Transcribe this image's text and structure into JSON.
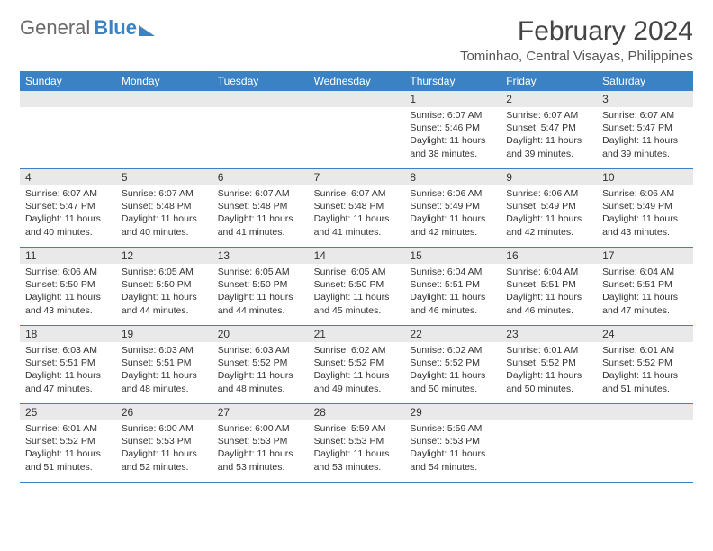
{
  "logo": {
    "text_a": "General",
    "text_b": "Blue"
  },
  "title": "February 2024",
  "location": "Tominhao, Central Visayas, Philippines",
  "colors": {
    "header_bg": "#3b82c4",
    "daynum_bg": "#e9e9e9",
    "text": "#333333",
    "title_text": "#444444",
    "week_border": "#3b82c4"
  },
  "day_names": [
    "Sunday",
    "Monday",
    "Tuesday",
    "Wednesday",
    "Thursday",
    "Friday",
    "Saturday"
  ],
  "weeks": [
    [
      {
        "empty": true
      },
      {
        "empty": true
      },
      {
        "empty": true
      },
      {
        "empty": true
      },
      {
        "n": "1",
        "sunrise": "Sunrise: 6:07 AM",
        "sunset": "Sunset: 5:46 PM",
        "day1": "Daylight: 11 hours",
        "day2": "and 38 minutes."
      },
      {
        "n": "2",
        "sunrise": "Sunrise: 6:07 AM",
        "sunset": "Sunset: 5:47 PM",
        "day1": "Daylight: 11 hours",
        "day2": "and 39 minutes."
      },
      {
        "n": "3",
        "sunrise": "Sunrise: 6:07 AM",
        "sunset": "Sunset: 5:47 PM",
        "day1": "Daylight: 11 hours",
        "day2": "and 39 minutes."
      }
    ],
    [
      {
        "n": "4",
        "sunrise": "Sunrise: 6:07 AM",
        "sunset": "Sunset: 5:47 PM",
        "day1": "Daylight: 11 hours",
        "day2": "and 40 minutes."
      },
      {
        "n": "5",
        "sunrise": "Sunrise: 6:07 AM",
        "sunset": "Sunset: 5:48 PM",
        "day1": "Daylight: 11 hours",
        "day2": "and 40 minutes."
      },
      {
        "n": "6",
        "sunrise": "Sunrise: 6:07 AM",
        "sunset": "Sunset: 5:48 PM",
        "day1": "Daylight: 11 hours",
        "day2": "and 41 minutes."
      },
      {
        "n": "7",
        "sunrise": "Sunrise: 6:07 AM",
        "sunset": "Sunset: 5:48 PM",
        "day1": "Daylight: 11 hours",
        "day2": "and 41 minutes."
      },
      {
        "n": "8",
        "sunrise": "Sunrise: 6:06 AM",
        "sunset": "Sunset: 5:49 PM",
        "day1": "Daylight: 11 hours",
        "day2": "and 42 minutes."
      },
      {
        "n": "9",
        "sunrise": "Sunrise: 6:06 AM",
        "sunset": "Sunset: 5:49 PM",
        "day1": "Daylight: 11 hours",
        "day2": "and 42 minutes."
      },
      {
        "n": "10",
        "sunrise": "Sunrise: 6:06 AM",
        "sunset": "Sunset: 5:49 PM",
        "day1": "Daylight: 11 hours",
        "day2": "and 43 minutes."
      }
    ],
    [
      {
        "n": "11",
        "sunrise": "Sunrise: 6:06 AM",
        "sunset": "Sunset: 5:50 PM",
        "day1": "Daylight: 11 hours",
        "day2": "and 43 minutes."
      },
      {
        "n": "12",
        "sunrise": "Sunrise: 6:05 AM",
        "sunset": "Sunset: 5:50 PM",
        "day1": "Daylight: 11 hours",
        "day2": "and 44 minutes."
      },
      {
        "n": "13",
        "sunrise": "Sunrise: 6:05 AM",
        "sunset": "Sunset: 5:50 PM",
        "day1": "Daylight: 11 hours",
        "day2": "and 44 minutes."
      },
      {
        "n": "14",
        "sunrise": "Sunrise: 6:05 AM",
        "sunset": "Sunset: 5:50 PM",
        "day1": "Daylight: 11 hours",
        "day2": "and 45 minutes."
      },
      {
        "n": "15",
        "sunrise": "Sunrise: 6:04 AM",
        "sunset": "Sunset: 5:51 PM",
        "day1": "Daylight: 11 hours",
        "day2": "and 46 minutes."
      },
      {
        "n": "16",
        "sunrise": "Sunrise: 6:04 AM",
        "sunset": "Sunset: 5:51 PM",
        "day1": "Daylight: 11 hours",
        "day2": "and 46 minutes."
      },
      {
        "n": "17",
        "sunrise": "Sunrise: 6:04 AM",
        "sunset": "Sunset: 5:51 PM",
        "day1": "Daylight: 11 hours",
        "day2": "and 47 minutes."
      }
    ],
    [
      {
        "n": "18",
        "sunrise": "Sunrise: 6:03 AM",
        "sunset": "Sunset: 5:51 PM",
        "day1": "Daylight: 11 hours",
        "day2": "and 47 minutes."
      },
      {
        "n": "19",
        "sunrise": "Sunrise: 6:03 AM",
        "sunset": "Sunset: 5:51 PM",
        "day1": "Daylight: 11 hours",
        "day2": "and 48 minutes."
      },
      {
        "n": "20",
        "sunrise": "Sunrise: 6:03 AM",
        "sunset": "Sunset: 5:52 PM",
        "day1": "Daylight: 11 hours",
        "day2": "and 48 minutes."
      },
      {
        "n": "21",
        "sunrise": "Sunrise: 6:02 AM",
        "sunset": "Sunset: 5:52 PM",
        "day1": "Daylight: 11 hours",
        "day2": "and 49 minutes."
      },
      {
        "n": "22",
        "sunrise": "Sunrise: 6:02 AM",
        "sunset": "Sunset: 5:52 PM",
        "day1": "Daylight: 11 hours",
        "day2": "and 50 minutes."
      },
      {
        "n": "23",
        "sunrise": "Sunrise: 6:01 AM",
        "sunset": "Sunset: 5:52 PM",
        "day1": "Daylight: 11 hours",
        "day2": "and 50 minutes."
      },
      {
        "n": "24",
        "sunrise": "Sunrise: 6:01 AM",
        "sunset": "Sunset: 5:52 PM",
        "day1": "Daylight: 11 hours",
        "day2": "and 51 minutes."
      }
    ],
    [
      {
        "n": "25",
        "sunrise": "Sunrise: 6:01 AM",
        "sunset": "Sunset: 5:52 PM",
        "day1": "Daylight: 11 hours",
        "day2": "and 51 minutes."
      },
      {
        "n": "26",
        "sunrise": "Sunrise: 6:00 AM",
        "sunset": "Sunset: 5:53 PM",
        "day1": "Daylight: 11 hours",
        "day2": "and 52 minutes."
      },
      {
        "n": "27",
        "sunrise": "Sunrise: 6:00 AM",
        "sunset": "Sunset: 5:53 PM",
        "day1": "Daylight: 11 hours",
        "day2": "and 53 minutes."
      },
      {
        "n": "28",
        "sunrise": "Sunrise: 5:59 AM",
        "sunset": "Sunset: 5:53 PM",
        "day1": "Daylight: 11 hours",
        "day2": "and 53 minutes."
      },
      {
        "n": "29",
        "sunrise": "Sunrise: 5:59 AM",
        "sunset": "Sunset: 5:53 PM",
        "day1": "Daylight: 11 hours",
        "day2": "and 54 minutes."
      },
      {
        "empty": true
      },
      {
        "empty": true
      }
    ]
  ]
}
